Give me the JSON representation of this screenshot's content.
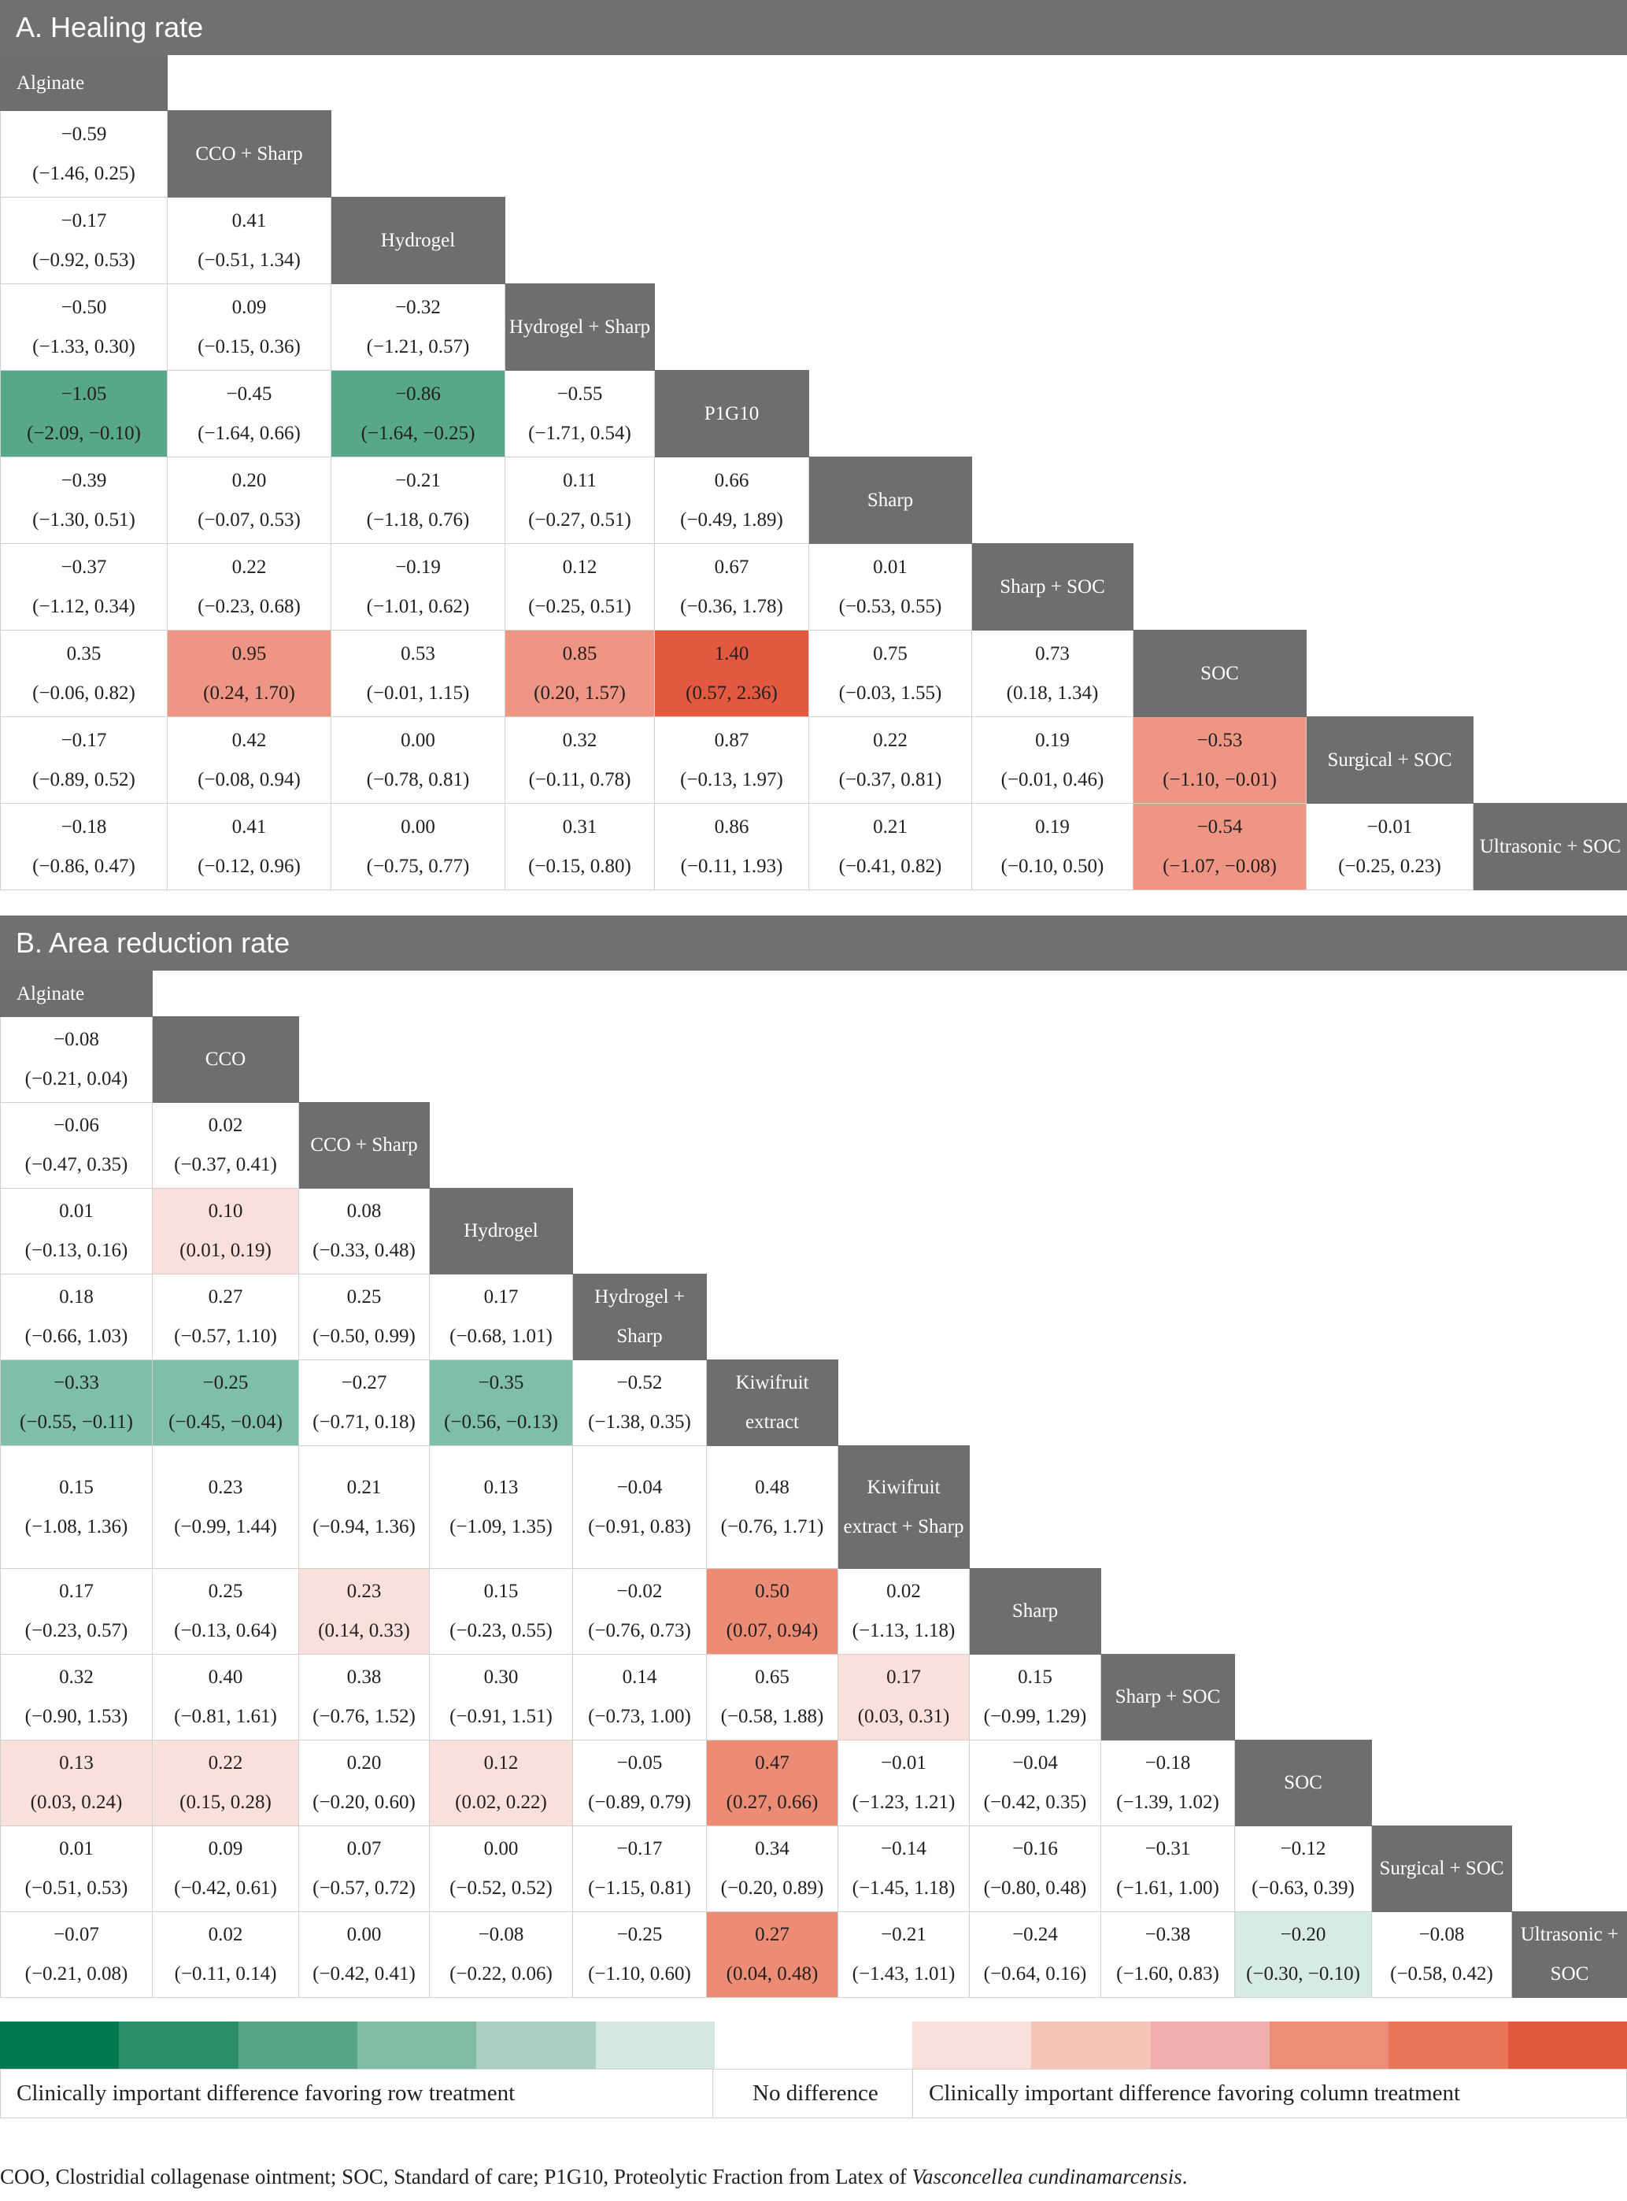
{
  "panelA": {
    "title": "A. Healing rate",
    "treatments": [
      "Alginate",
      "CCO + Sharp",
      "Hydrogel",
      "Hydrogel + Sharp",
      "P1G10",
      "Sharp",
      "Sharp + SOC",
      "SOC",
      "Surgical + SOC",
      "Ultrasonic + SOC"
    ],
    "rows": [
      [],
      [
        {
          "est": "−0.59",
          "ci": "(−1.46, 0.25)"
        }
      ],
      [
        {
          "est": "−0.17",
          "ci": "(−0.92, 0.53)"
        },
        {
          "est": "0.41",
          "ci": "(−0.51, 1.34)"
        }
      ],
      [
        {
          "est": "−0.50",
          "ci": "(−1.33, 0.30)"
        },
        {
          "est": "0.09",
          "ci": "(−0.15, 0.36)"
        },
        {
          "est": "−0.32",
          "ci": "(−1.21, 0.57)"
        }
      ],
      [
        {
          "est": "−1.05",
          "ci": "(−2.09, −0.10)",
          "color": "#57a789"
        },
        {
          "est": "−0.45",
          "ci": "(−1.64, 0.66)"
        },
        {
          "est": "−0.86",
          "ci": "(−1.64, −0.25)",
          "color": "#57a789"
        },
        {
          "est": "−0.55",
          "ci": "(−1.71, 0.54)"
        }
      ],
      [
        {
          "est": "−0.39",
          "ci": "(−1.30, 0.51)"
        },
        {
          "est": "0.20",
          "ci": "(−0.07, 0.53)"
        },
        {
          "est": "−0.21",
          "ci": "(−1.18, 0.76)"
        },
        {
          "est": "0.11",
          "ci": "(−0.27, 0.51)"
        },
        {
          "est": "0.66",
          "ci": "(−0.49, 1.89)"
        }
      ],
      [
        {
          "est": "−0.37",
          "ci": "(−1.12, 0.34)"
        },
        {
          "est": "0.22",
          "ci": "(−0.23, 0.68)"
        },
        {
          "est": "−0.19",
          "ci": "(−1.01, 0.62)"
        },
        {
          "est": "0.12",
          "ci": "(−0.25, 0.51)"
        },
        {
          "est": "0.67",
          "ci": "(−0.36, 1.78)"
        },
        {
          "est": "0.01",
          "ci": "(−0.53, 0.55)"
        }
      ],
      [
        {
          "est": "0.35",
          "ci": "(−0.06, 0.82)"
        },
        {
          "est": "0.95",
          "ci": "(0.24, 1.70)",
          "color": "#ee9683"
        },
        {
          "est": "0.53",
          "ci": "(−0.01, 1.15)"
        },
        {
          "est": "0.85",
          "ci": "(0.20, 1.57)",
          "color": "#ee9683"
        },
        {
          "est": "1.40",
          "ci": "(0.57, 2.36)",
          "color": "#e2593f"
        },
        {
          "est": "0.75",
          "ci": "(−0.03, 1.55)"
        },
        {
          "est": "0.73",
          "ci": "(0.18, 1.34)"
        }
      ],
      [
        {
          "est": "−0.17",
          "ci": "(−0.89, 0.52)"
        },
        {
          "est": "0.42",
          "ci": "(−0.08, 0.94)"
        },
        {
          "est": "0.00",
          "ci": "(−0.78, 0.81)"
        },
        {
          "est": "0.32",
          "ci": "(−0.11, 0.78)"
        },
        {
          "est": "0.87",
          "ci": "(−0.13, 1.97)"
        },
        {
          "est": "0.22",
          "ci": "(−0.37, 0.81)"
        },
        {
          "est": "0.19",
          "ci": "(−0.01, 0.46)"
        },
        {
          "est": "−0.53",
          "ci": "(−1.10, −0.01)",
          "color": "#ee9683"
        }
      ],
      [
        {
          "est": "−0.18",
          "ci": "(−0.86, 0.47)"
        },
        {
          "est": "0.41",
          "ci": "(−0.12, 0.96)"
        },
        {
          "est": "0.00",
          "ci": "(−0.75, 0.77)"
        },
        {
          "est": "0.31",
          "ci": "(−0.15, 0.80)"
        },
        {
          "est": "0.86",
          "ci": "(−0.11, 1.93)"
        },
        {
          "est": "0.21",
          "ci": "(−0.41, 0.82)"
        },
        {
          "est": "0.19",
          "ci": "(−0.10, 0.50)"
        },
        {
          "est": "−0.54",
          "ci": "(−1.07, −0.08)",
          "color": "#ee9683"
        },
        {
          "est": "−0.01",
          "ci": "(−0.25, 0.23)"
        }
      ]
    ]
  },
  "panelB": {
    "title": "B. Area reduction rate",
    "treatments": [
      "Alginate",
      "CCO",
      "CCO + Sharp",
      "Hydrogel",
      "Hydrogel + Sharp",
      "Kiwifruit extract",
      "Kiwifruit extract + Sharp",
      "Sharp",
      "Sharp + SOC",
      "SOC",
      "Surgical + SOC",
      "Ultrasonic + SOC"
    ],
    "rows": [
      [],
      [
        {
          "est": "−0.08",
          "ci": "(−0.21, 0.04)"
        }
      ],
      [
        {
          "est": "−0.06",
          "ci": "(−0.47, 0.35)"
        },
        {
          "est": "0.02",
          "ci": "(−0.37, 0.41)"
        }
      ],
      [
        {
          "est": "0.01",
          "ci": "(−0.13, 0.16)"
        },
        {
          "est": "0.10",
          "ci": "(0.01, 0.19)",
          "color": "#f9e0da"
        },
        {
          "est": "0.08",
          "ci": "(−0.33, 0.48)"
        }
      ],
      [
        {
          "est": "0.18",
          "ci": "(−0.66, 1.03)"
        },
        {
          "est": "0.27",
          "ci": "(−0.57, 1.10)"
        },
        {
          "est": "0.25",
          "ci": "(−0.50, 0.99)"
        },
        {
          "est": "0.17",
          "ci": "(−0.68, 1.01)"
        }
      ],
      [
        {
          "est": "−0.33",
          "ci": "(−0.55, −0.11)",
          "color": "#7fbfa7"
        },
        {
          "est": "−0.25",
          "ci": "(−0.45, −0.04)",
          "color": "#7fbfa7"
        },
        {
          "est": "−0.27",
          "ci": "(−0.71, 0.18)"
        },
        {
          "est": "−0.35",
          "ci": "(−0.56, −0.13)",
          "color": "#7fbfa7"
        },
        {
          "est": "−0.52",
          "ci": "(−1.38, 0.35)"
        }
      ],
      [
        {
          "est": "0.15",
          "ci": "(−1.08, 1.36)"
        },
        {
          "est": "0.23",
          "ci": "(−0.99, 1.44)"
        },
        {
          "est": "0.21",
          "ci": "(−0.94, 1.36)"
        },
        {
          "est": "0.13",
          "ci": "(−1.09, 1.35)"
        },
        {
          "est": "−0.04",
          "ci": "(−0.91, 0.83)"
        },
        {
          "est": "0.48",
          "ci": "(−0.76, 1.71)"
        }
      ],
      [
        {
          "est": "0.17",
          "ci": "(−0.23, 0.57)"
        },
        {
          "est": "0.25",
          "ci": "(−0.13, 0.64)"
        },
        {
          "est": "0.23",
          "ci": "(0.14, 0.33)",
          "color": "#f9e0da"
        },
        {
          "est": "0.15",
          "ci": "(−0.23, 0.55)"
        },
        {
          "est": "−0.02",
          "ci": "(−0.76, 0.73)"
        },
        {
          "est": "0.50",
          "ci": "(0.07, 0.94)",
          "color": "#ec8c74"
        },
        {
          "est": "0.02",
          "ci": "(−1.13, 1.18)"
        }
      ],
      [
        {
          "est": "0.32",
          "ci": "(−0.90, 1.53)"
        },
        {
          "est": "0.40",
          "ci": "(−0.81, 1.61)"
        },
        {
          "est": "0.38",
          "ci": "(−0.76, 1.52)"
        },
        {
          "est": "0.30",
          "ci": "(−0.91, 1.51)"
        },
        {
          "est": "0.14",
          "ci": "(−0.73, 1.00)"
        },
        {
          "est": "0.65",
          "ci": "(−0.58, 1.88)"
        },
        {
          "est": "0.17",
          "ci": "(0.03, 0.31)",
          "color": "#f9e0da"
        },
        {
          "est": "0.15",
          "ci": "(−0.99, 1.29)"
        }
      ],
      [
        {
          "est": "0.13",
          "ci": "(0.03, 0.24)",
          "color": "#f9e0da"
        },
        {
          "est": "0.22",
          "ci": "(0.15, 0.28)",
          "color": "#f9e0da"
        },
        {
          "est": "0.20",
          "ci": "(−0.20, 0.60)"
        },
        {
          "est": "0.12",
          "ci": "(0.02, 0.22)",
          "color": "#f9e0da"
        },
        {
          "est": "−0.05",
          "ci": "(−0.89, 0.79)"
        },
        {
          "est": "0.47",
          "ci": "(0.27, 0.66)",
          "color": "#ec8c74"
        },
        {
          "est": "−0.01",
          "ci": "(−1.23, 1.21)"
        },
        {
          "est": "−0.04",
          "ci": "(−0.42, 0.35)"
        },
        {
          "est": "−0.18",
          "ci": "(−1.39, 1.02)"
        }
      ],
      [
        {
          "est": "0.01",
          "ci": "(−0.51, 0.53)"
        },
        {
          "est": "0.09",
          "ci": "(−0.42, 0.61)"
        },
        {
          "est": "0.07",
          "ci": "(−0.57, 0.72)"
        },
        {
          "est": "0.00",
          "ci": "(−0.52, 0.52)"
        },
        {
          "est": "−0.17",
          "ci": "(−1.15, 0.81)"
        },
        {
          "est": "0.34",
          "ci": "(−0.20, 0.89)"
        },
        {
          "est": "−0.14",
          "ci": "(−1.45, 1.18)"
        },
        {
          "est": "−0.16",
          "ci": "(−0.80, 0.48)"
        },
        {
          "est": "−0.31",
          "ci": "(−1.61, 1.00)"
        },
        {
          "est": "−0.12",
          "ci": "(−0.63, 0.39)"
        }
      ],
      [
        {
          "est": "−0.07",
          "ci": "(−0.21, 0.08)"
        },
        {
          "est": "0.02",
          "ci": "(−0.11, 0.14)"
        },
        {
          "est": "0.00",
          "ci": "(−0.42, 0.41)"
        },
        {
          "est": "−0.08",
          "ci": "(−0.22, 0.06)"
        },
        {
          "est": "−0.25",
          "ci": "(−1.10, 0.60)"
        },
        {
          "est": "0.27",
          "ci": "(0.04, 0.48)",
          "color": "#ec8c74"
        },
        {
          "est": "−0.21",
          "ci": "(−1.43, 1.01)"
        },
        {
          "est": "−0.24",
          "ci": "(−0.64, 0.16)"
        },
        {
          "est": "−0.38",
          "ci": "(−1.60, 0.83)"
        },
        {
          "est": "−0.20",
          "ci": "(−0.30, −0.10)",
          "color": "#d6ebe3"
        },
        {
          "est": "−0.08",
          "ci": "(−0.58, 0.42)"
        }
      ]
    ]
  },
  "legend": {
    "colors": [
      "#007a50",
      "#2b8f6a",
      "#56a586",
      "#80bba4",
      "#aacfc1",
      "#d4e8e1",
      "#ffffff",
      "#f9e0da",
      "#f4c4b9",
      "#efadae",
      "#eb8e78",
      "#e87555",
      "#e3593d"
    ],
    "labels": [
      "Clinically important difference favoring row treatment",
      "No difference",
      "Clinically important difference favoring column treatment"
    ]
  },
  "footnote": {
    "text": "COO, Clostridial collagenase ointment; SOC, Standard of care; P1G10, Proteolytic Fraction from Latex of ",
    "italic": "Vasconcellea cundinamarcensis",
    "end": "."
  }
}
